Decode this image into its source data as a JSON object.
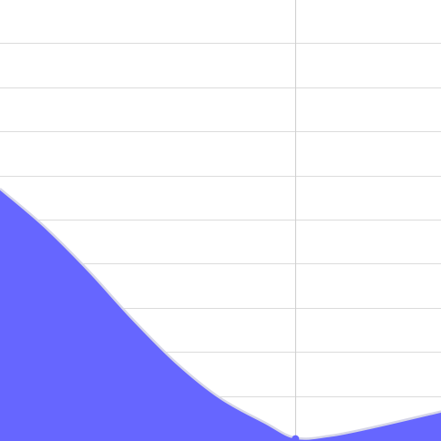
{
  "chart_data": {
    "type": "area",
    "title": "",
    "xlabel": "",
    "ylabel": "",
    "grid": true,
    "xlim": [
      0,
      10
    ],
    "ylim": [
      0,
      10
    ],
    "x": [
      0,
      1,
      2,
      3,
      4,
      5,
      6,
      6.7,
      7.5,
      8.5,
      10
    ],
    "series": [
      {
        "values": [
          5.7,
          4.85,
          3.85,
          2.75,
          1.75,
          0.95,
          0.4,
          0.05,
          0.1,
          0.3,
          0.65
        ],
        "color": "#6666ff"
      }
    ],
    "markers": [
      {
        "x": 6.7,
        "y": 0.05
      }
    ],
    "vertical_line_x": 6.7
  }
}
